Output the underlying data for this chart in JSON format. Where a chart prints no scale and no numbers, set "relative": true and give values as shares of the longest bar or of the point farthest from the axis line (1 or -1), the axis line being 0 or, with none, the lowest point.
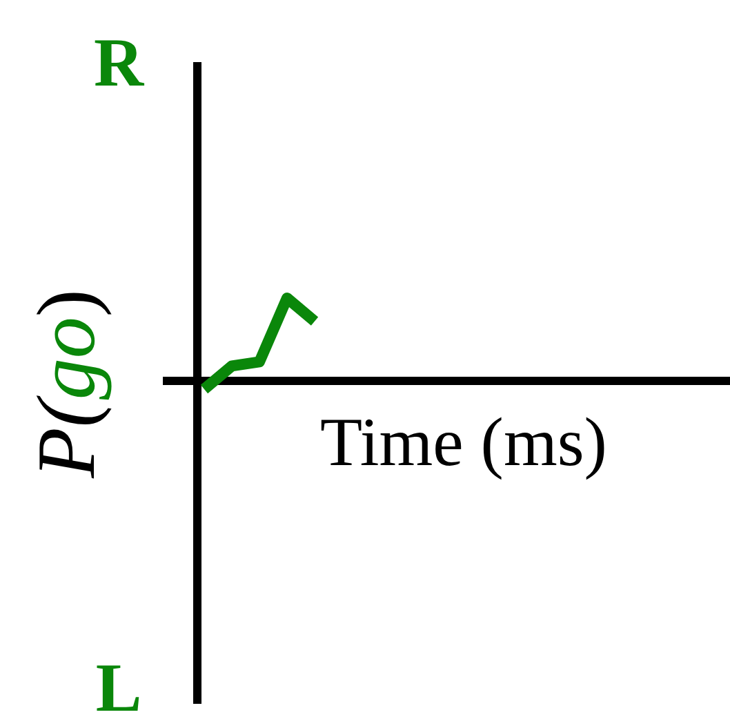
{
  "chart_data": {
    "type": "line",
    "relative": true,
    "xlabel": "Time (ms)",
    "ylabel": "P(go)",
    "annotations": [
      "R",
      "L"
    ],
    "categories": [
      null,
      null,
      null,
      null,
      null
    ],
    "series": [
      {
        "color": "#0a870a",
        "values": [
          -0.1,
          0.18,
          0.23,
          1,
          0.72
        ]
      }
    ]
  }
}
